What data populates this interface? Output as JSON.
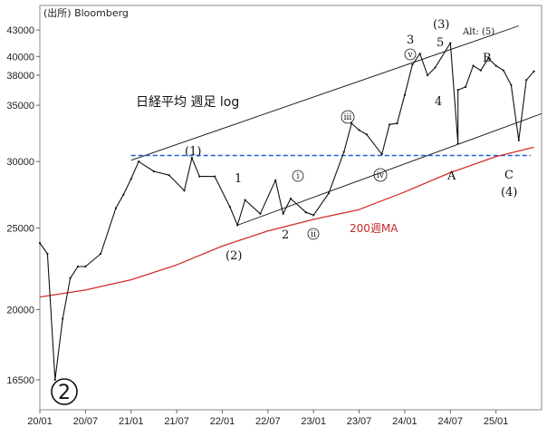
{
  "chart_data": {
    "type": "line",
    "source": "(出所) Bloomberg",
    "title": "日経平均 週足 log",
    "y_ticks": [
      43000,
      40000,
      38000,
      35000,
      30000,
      25000,
      20000,
      16500
    ],
    "y_tick_labels": [
      "43000",
      "40000",
      "38000",
      "35000",
      "30000",
      "25000",
      "20000",
      "16500"
    ],
    "x_ticks": [
      "2020-01",
      "2020-07",
      "2021-01",
      "2021-07",
      "2022-01",
      "2022-07",
      "2023-01",
      "2023-07",
      "2024-01",
      "2024-07",
      "2025-01"
    ],
    "x_tick_labels": [
      "20/01",
      "20/07",
      "21/01",
      "21/07",
      "22/01",
      "22/07",
      "23/01",
      "23/07",
      "24/01",
      "24/07",
      "25/01"
    ],
    "y_scale": "log",
    "ylim": [
      15200,
      46000
    ],
    "xlim": [
      "2020-01",
      "2025-07"
    ],
    "series": [
      {
        "name": "日経平均",
        "color": "#111111",
        "x": [
          "2020-01",
          "2020-02",
          "2020-03",
          "2020-04",
          "2020-05",
          "2020-06",
          "2020-07",
          "2020-09",
          "2020-11",
          "2020-12",
          "2021-01",
          "2021-02",
          "2021-04",
          "2021-06",
          "2021-08",
          "2021-09",
          "2021-10",
          "2021-12",
          "2022-02",
          "2022-03",
          "2022-04",
          "2022-06",
          "2022-08",
          "2022-09",
          "2022-10",
          "2022-12",
          "2023-01",
          "2023-03",
          "2023-05",
          "2023-06",
          "2023-07",
          "2023-08",
          "2023-10",
          "2023-11",
          "2023-12",
          "2024-01",
          "2024-02",
          "2024-03",
          "2024-04",
          "2024-05",
          "2024-07",
          "2024-08",
          "2024-08",
          "2024-09",
          "2024-10",
          "2024-11",
          "2024-12",
          "2025-01",
          "2025-02",
          "2025-03",
          "2025-04",
          "2025-05",
          "2025-06"
        ],
        "values": [
          24000,
          23300,
          16500,
          19500,
          21800,
          22500,
          22500,
          23300,
          26400,
          27400,
          28600,
          30000,
          29200,
          28900,
          27700,
          30300,
          28800,
          28800,
          26500,
          25200,
          27000,
          26000,
          28500,
          26000,
          27100,
          26100,
          25900,
          27500,
          30800,
          33300,
          32700,
          32300,
          30600,
          33200,
          33300,
          36000,
          39100,
          40300,
          38000,
          38800,
          41500,
          31500,
          36500,
          36800,
          39000,
          38500,
          39800,
          39000,
          38500,
          37000,
          31800,
          37500,
          38400
        ]
      },
      {
        "name": "200週MA",
        "color": "#d32f2f",
        "x": [
          "2020-01",
          "2020-07",
          "2021-01",
          "2021-07",
          "2022-01",
          "2022-07",
          "2023-01",
          "2023-07",
          "2024-01",
          "2024-07",
          "2025-01",
          "2025-06"
        ],
        "values": [
          20700,
          21100,
          21700,
          22600,
          23800,
          24800,
          25600,
          26300,
          27600,
          29100,
          30400,
          31200
        ]
      }
    ],
    "reference_line": {
      "value": 30500,
      "style": "dashed",
      "color": "#1f5fd6"
    },
    "channel_lines": [
      {
        "x": [
          "2021-01",
          "2025-04"
        ],
        "values": [
          30100,
          43500
        ]
      },
      {
        "x": [
          "2022-03",
          "2025-07"
        ],
        "values": [
          25200,
          34200
        ]
      }
    ],
    "annotations": [
      "(1)",
      "1",
      "(2)",
      "2",
      "i",
      "ii",
      "iii",
      "iv",
      "v",
      "3",
      "(3)",
      "5",
      "Alt: (5)",
      "4",
      "A",
      "B",
      "C",
      "(4)",
      "2",
      "200週MA"
    ]
  }
}
